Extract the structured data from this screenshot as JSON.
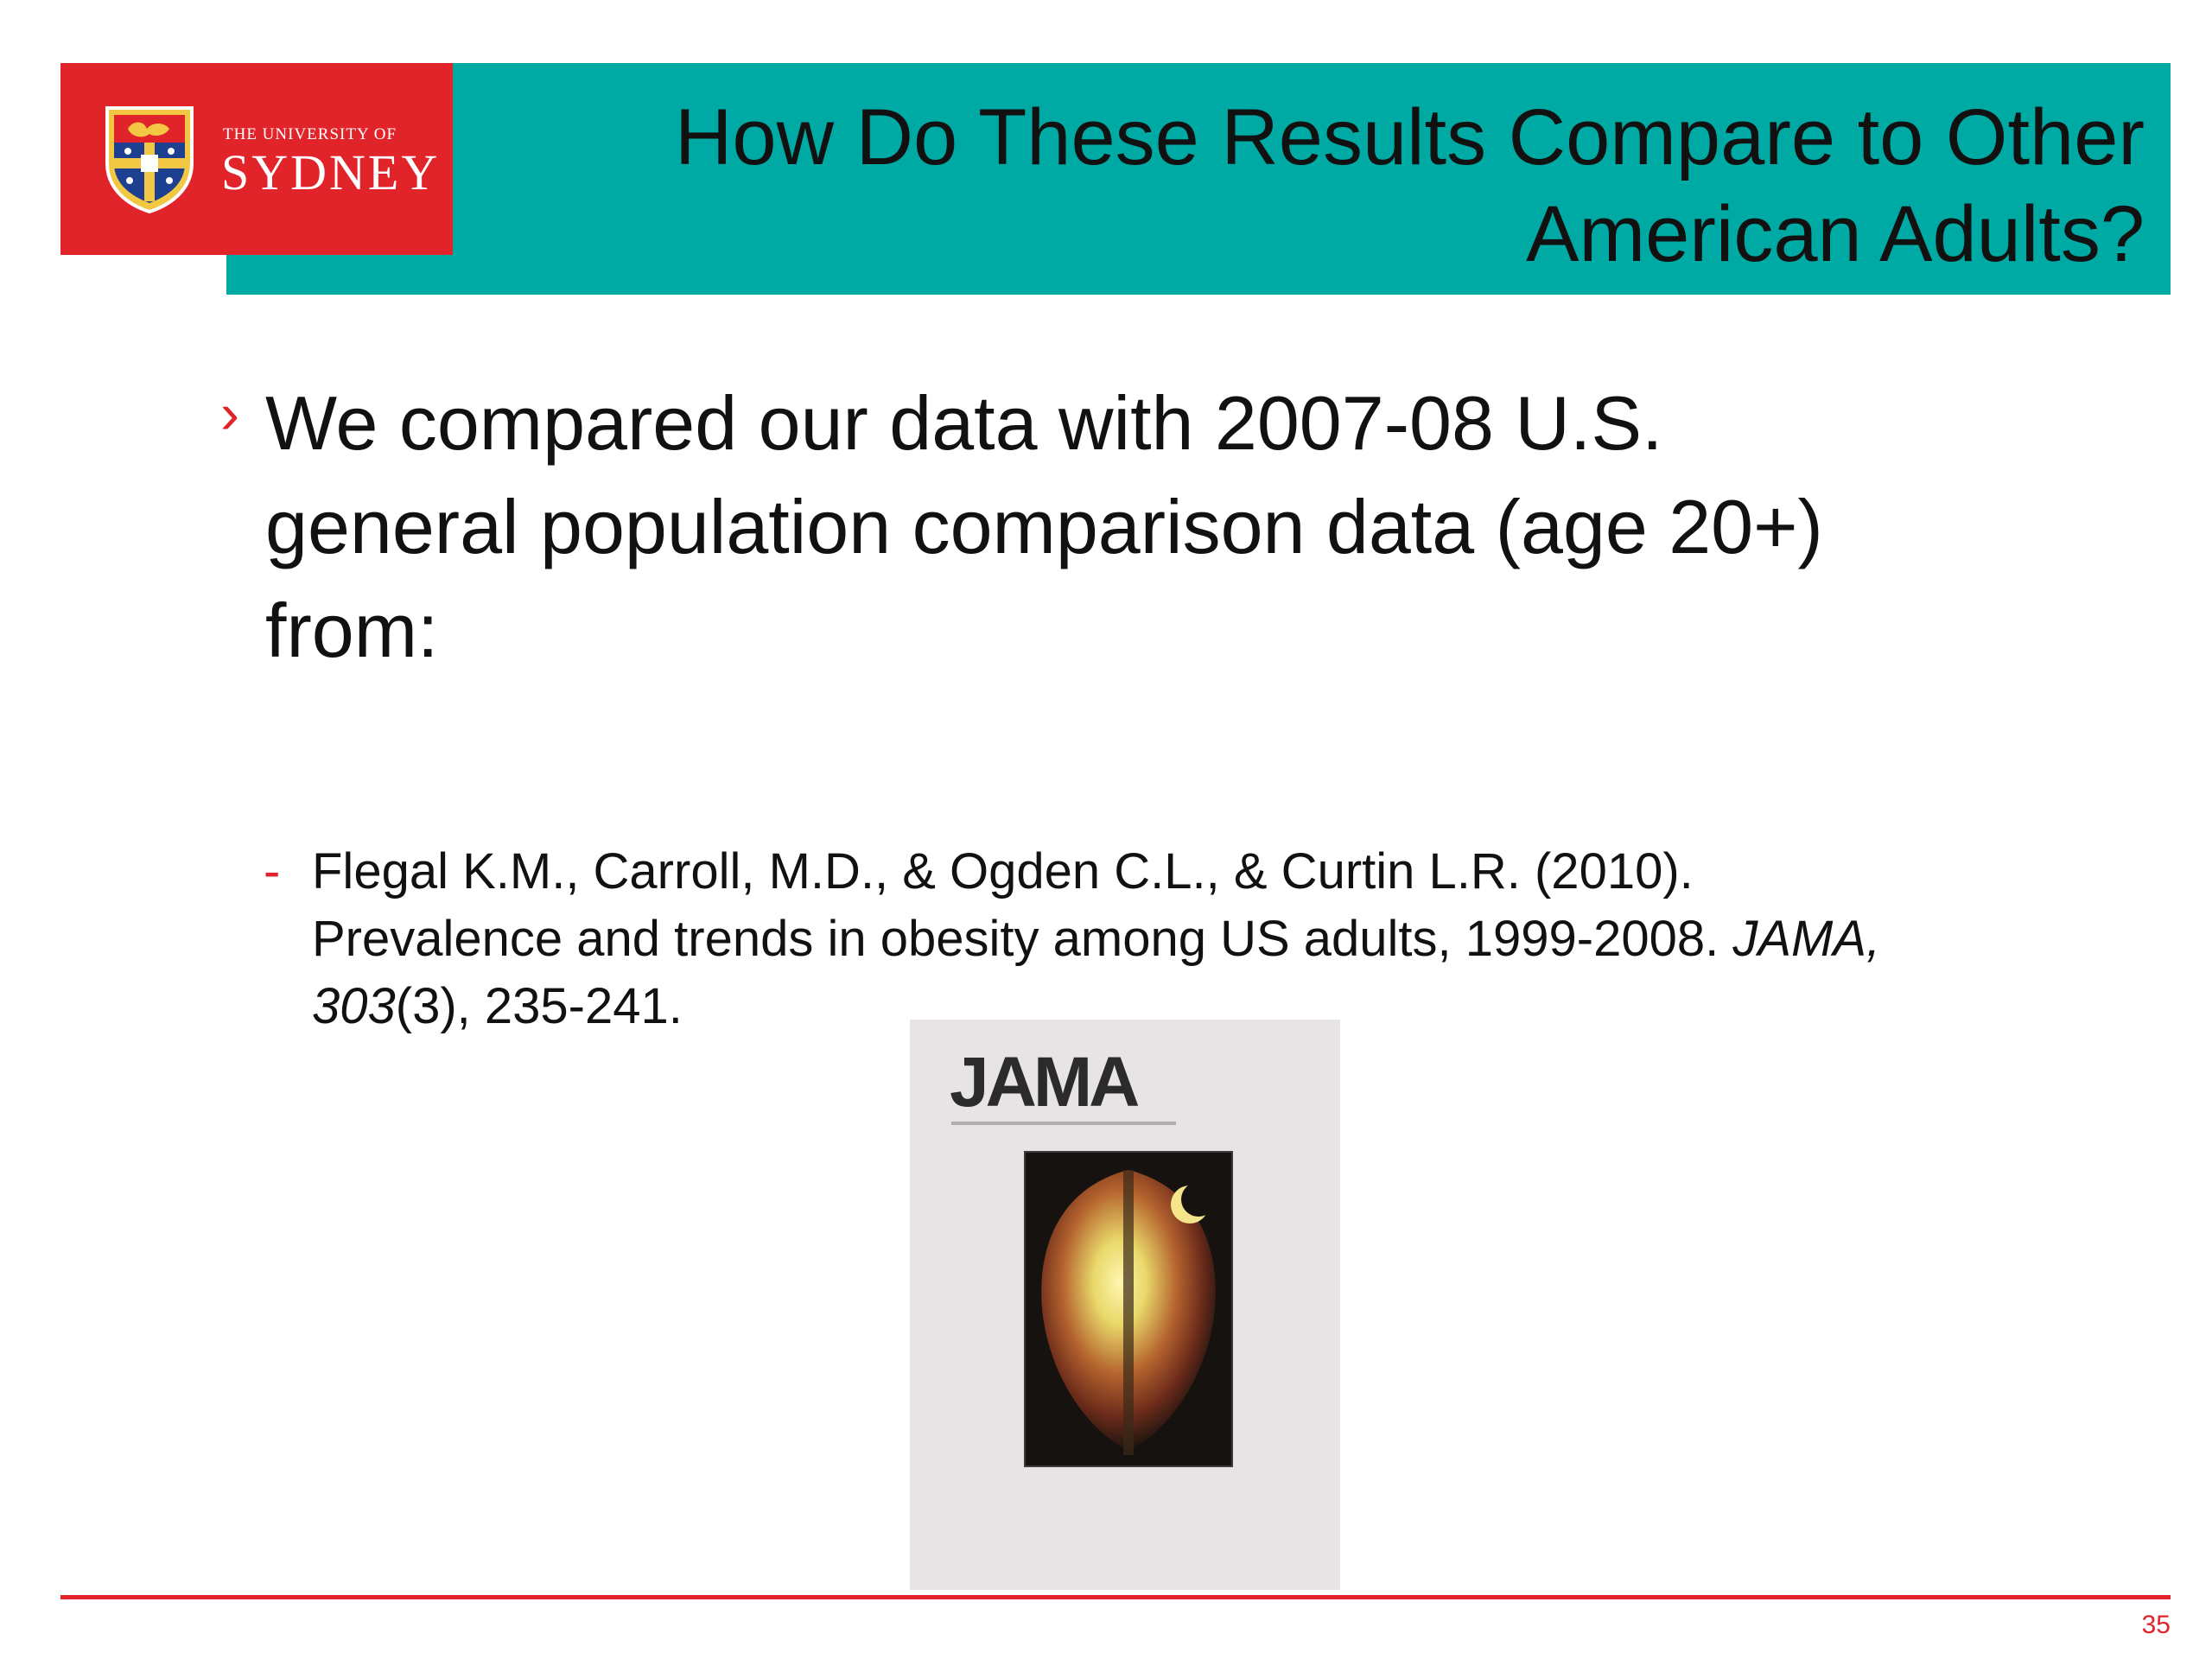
{
  "header": {
    "title_line1": "How Do These Results Compare to Other",
    "title_line2": "American Adults?",
    "teal_color": "#00aaa4"
  },
  "logo": {
    "small_text": "THE UNIVERSITY OF",
    "big_text": "SYDNEY",
    "brand_color": "#e1232a",
    "icon": "university-crest-icon"
  },
  "main_bullet": {
    "marker": "›",
    "text_line1": "We compared our data with 2007-08 U.S.",
    "text_line2": "general population comparison data (age 20+)",
    "text_line3": "from:"
  },
  "reference": {
    "marker": "-",
    "line1": "Flegal K.M., Carroll, M.D., & Ogden C.L., & Curtin L.R. (2010).",
    "line2_start": "Prevalence and trends in obesity among US adults, 1999-2008. ",
    "journal": "JAMA,",
    "volume": "303",
    "pages": "(3), 235-241."
  },
  "cover": {
    "title": "JAMA"
  },
  "footer": {
    "page_number": "35"
  }
}
